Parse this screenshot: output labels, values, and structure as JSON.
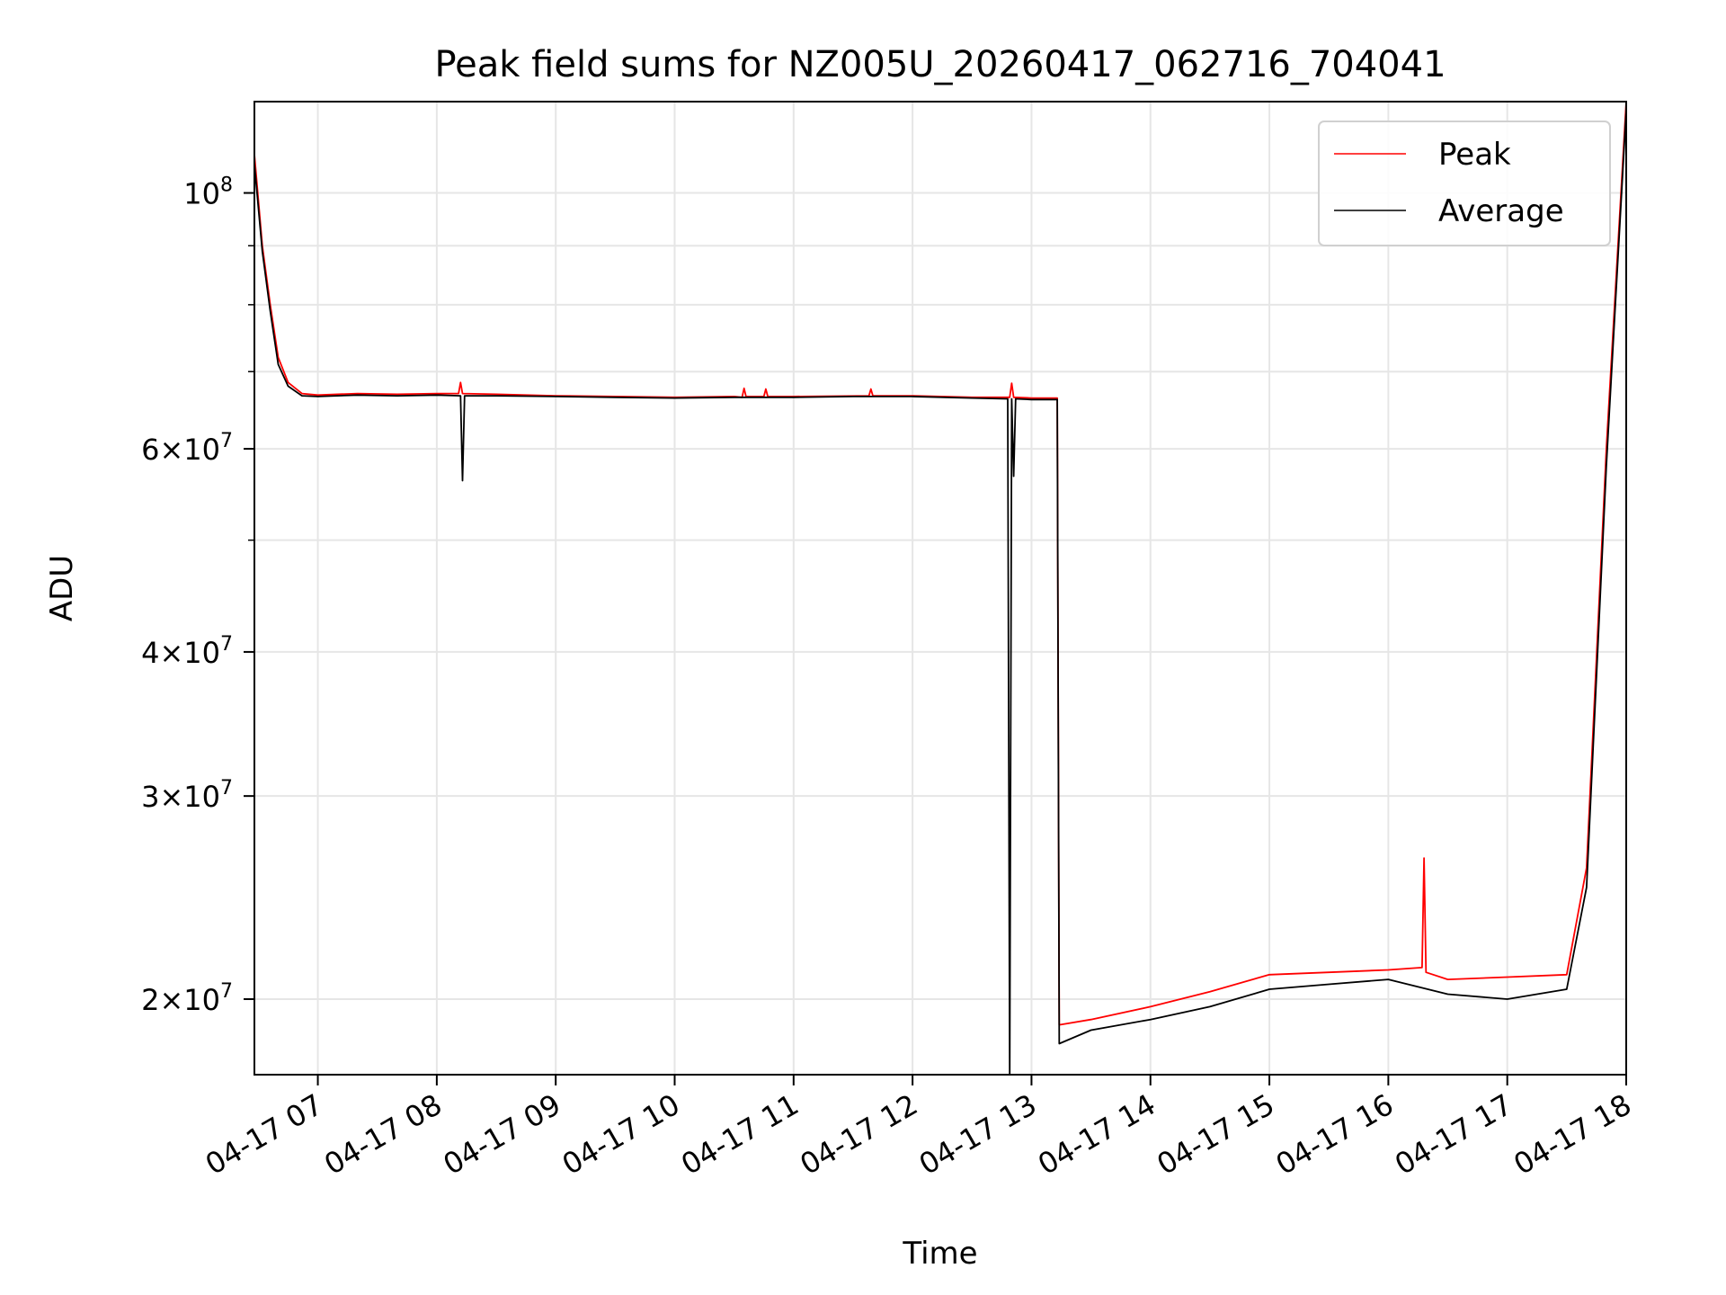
{
  "chart_data": {
    "type": "line",
    "title": "Peak field sums for NZ005U_20260417_062716_704041",
    "xlabel": "Time",
    "ylabel": "ADU",
    "yscale": "log",
    "grid": true,
    "legend_position": "top-right",
    "xlim": [
      "2026-04-17 06:28",
      "2026-04-17 18:00"
    ],
    "ylim": [
      17200000,
      120000000
    ],
    "x_ticks": [
      "2026-04-17 07:00",
      "2026-04-17 08:00",
      "2026-04-17 09:00",
      "2026-04-17 10:00",
      "2026-04-17 11:00",
      "2026-04-17 12:00",
      "2026-04-17 13:00",
      "2026-04-17 14:00",
      "2026-04-17 15:00",
      "2026-04-17 16:00",
      "2026-04-17 17:00",
      "2026-04-17 18:00"
    ],
    "x_tick_labels": [
      "04-17 07",
      "04-17 08",
      "04-17 09",
      "04-17 10",
      "04-17 11",
      "04-17 12",
      "04-17 13",
      "04-17 14",
      "04-17 15",
      "04-17 16",
      "04-17 17",
      "04-17 18"
    ],
    "y_ticks": [
      {
        "value": 20000000,
        "mantissa": "2",
        "exp": "7"
      },
      {
        "value": 30000000,
        "mantissa": "3",
        "exp": "7"
      },
      {
        "value": 40000000,
        "mantissa": "4",
        "exp": "7"
      },
      {
        "value": 60000000,
        "mantissa": "6",
        "exp": "7"
      },
      {
        "value": 100000000,
        "mantissa": "",
        "exp": "8"
      }
    ],
    "y_minor_ticks": [
      50000000,
      70000000,
      80000000,
      90000000
    ],
    "series": [
      {
        "name": "Peak",
        "color": "#ff0000",
        "x": [
          "2026-04-17 06:28",
          "2026-04-17 06:32",
          "2026-04-17 06:36",
          "2026-04-17 06:40",
          "2026-04-17 06:45",
          "2026-04-17 06:52",
          "2026-04-17 07:00",
          "2026-04-17 07:20",
          "2026-04-17 07:40",
          "2026-04-17 08:00",
          "2026-04-17 08:11",
          "2026-04-17 08:12",
          "2026-04-17 08:13",
          "2026-04-17 08:30",
          "2026-04-17 09:00",
          "2026-04-17 09:30",
          "2026-04-17 10:00",
          "2026-04-17 10:30",
          "2026-04-17 10:34",
          "2026-04-17 10:35",
          "2026-04-17 10:36",
          "2026-04-17 10:45",
          "2026-04-17 10:46",
          "2026-04-17 10:47",
          "2026-04-17 11:00",
          "2026-04-17 11:38",
          "2026-04-17 11:39",
          "2026-04-17 11:40",
          "2026-04-17 12:00",
          "2026-04-17 12:30",
          "2026-04-17 12:49",
          "2026-04-17 12:50",
          "2026-04-17 12:51",
          "2026-04-17 13:00",
          "2026-04-17 13:13",
          "2026-04-17 13:14",
          "2026-04-17 13:30",
          "2026-04-17 14:00",
          "2026-04-17 14:30",
          "2026-04-17 15:00",
          "2026-04-17 15:30",
          "2026-04-17 16:00",
          "2026-04-17 16:17",
          "2026-04-17 16:18",
          "2026-04-17 16:19",
          "2026-04-17 16:30",
          "2026-04-17 17:00",
          "2026-04-17 17:30",
          "2026-04-17 17:40",
          "2026-04-17 17:50",
          "2026-04-17 18:00"
        ],
        "values": [
          108000000,
          90000000,
          80000000,
          72000000,
          68500000,
          67000000,
          66800000,
          67000000,
          66900000,
          67000000,
          67000000,
          68500000,
          67000000,
          66900000,
          66700000,
          66600000,
          66500000,
          66600000,
          66500000,
          67700000,
          66600000,
          66600000,
          67600000,
          66600000,
          66600000,
          66700000,
          67600000,
          66700000,
          66700000,
          66500000,
          66500000,
          68400000,
          66500000,
          66400000,
          66400000,
          19000000,
          19200000,
          19700000,
          20300000,
          21000000,
          21100000,
          21200000,
          21300000,
          26500000,
          21100000,
          20800000,
          20900000,
          21000000,
          26000000,
          60000000,
          120000000
        ]
      },
      {
        "name": "Average",
        "color": "#000000",
        "x": [
          "2026-04-17 06:28",
          "2026-04-17 06:32",
          "2026-04-17 06:36",
          "2026-04-17 06:40",
          "2026-04-17 06:45",
          "2026-04-17 06:52",
          "2026-04-17 07:00",
          "2026-04-17 07:20",
          "2026-04-17 07:40",
          "2026-04-17 08:00",
          "2026-04-17 08:12",
          "2026-04-17 08:13",
          "2026-04-17 08:14",
          "2026-04-17 08:30",
          "2026-04-17 09:00",
          "2026-04-17 09:30",
          "2026-04-17 10:00",
          "2026-04-17 10:30",
          "2026-04-17 11:00",
          "2026-04-17 11:30",
          "2026-04-17 12:00",
          "2026-04-17 12:30",
          "2026-04-17 12:48",
          "2026-04-17 12:49",
          "2026-04-17 12:50",
          "2026-04-17 12:51",
          "2026-04-17 12:52",
          "2026-04-17 13:00",
          "2026-04-17 13:13",
          "2026-04-17 13:14",
          "2026-04-17 13:30",
          "2026-04-17 14:00",
          "2026-04-17 14:30",
          "2026-04-17 15:00",
          "2026-04-17 15:30",
          "2026-04-17 16:00",
          "2026-04-17 16:30",
          "2026-04-17 17:00",
          "2026-04-17 17:30",
          "2026-04-17 17:40",
          "2026-04-17 17:50",
          "2026-04-17 18:00"
        ],
        "values": [
          106000000,
          89000000,
          79000000,
          71000000,
          68000000,
          66700000,
          66600000,
          66800000,
          66700000,
          66800000,
          66700000,
          56300000,
          66700000,
          66700000,
          66600000,
          66500000,
          66400000,
          66500000,
          66500000,
          66600000,
          66600000,
          66400000,
          66300000,
          17000000,
          66300000,
          56800000,
          66300000,
          66200000,
          66200000,
          18300000,
          18800000,
          19200000,
          19700000,
          20400000,
          20600000,
          20800000,
          20200000,
          20000000,
          20400000,
          25000000,
          58000000,
          118000000
        ]
      }
    ]
  }
}
